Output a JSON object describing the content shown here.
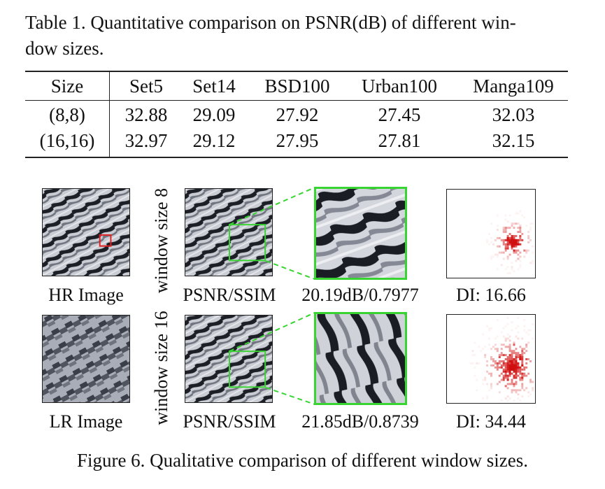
{
  "table": {
    "caption_line1": "Table 1. Quantitative comparison on PSNR(dB) of different win-",
    "caption_line2": "dow sizes.",
    "headers": [
      "Size",
      "Set5",
      "Set14",
      "BSD100",
      "Urban100",
      "Manga109"
    ],
    "rows": [
      [
        "(8,8)",
        "32.88",
        "29.09",
        "27.92",
        "27.45",
        "32.03"
      ],
      [
        "(16,16)",
        "32.97",
        "29.12",
        "27.95",
        "27.81",
        "32.15"
      ]
    ]
  },
  "figure": {
    "row1": {
      "side_label": "window size 8",
      "input_label": "HR Image",
      "result_label": "PSNR/SSIM",
      "metric": "20.19dB/0.7977",
      "di": "DI: 16.66"
    },
    "row2": {
      "side_label": "window size 16",
      "input_label": "LR Image",
      "result_label": "PSNR/SSIM",
      "metric": "21.85dB/0.8739",
      "di": "DI: 34.44"
    },
    "caption": "Figure 6. Qualitative comparison of different window sizes.",
    "colors": {
      "highlight_box": "#38d431",
      "roi_box": "#e02020",
      "heat": "#d01010"
    }
  }
}
